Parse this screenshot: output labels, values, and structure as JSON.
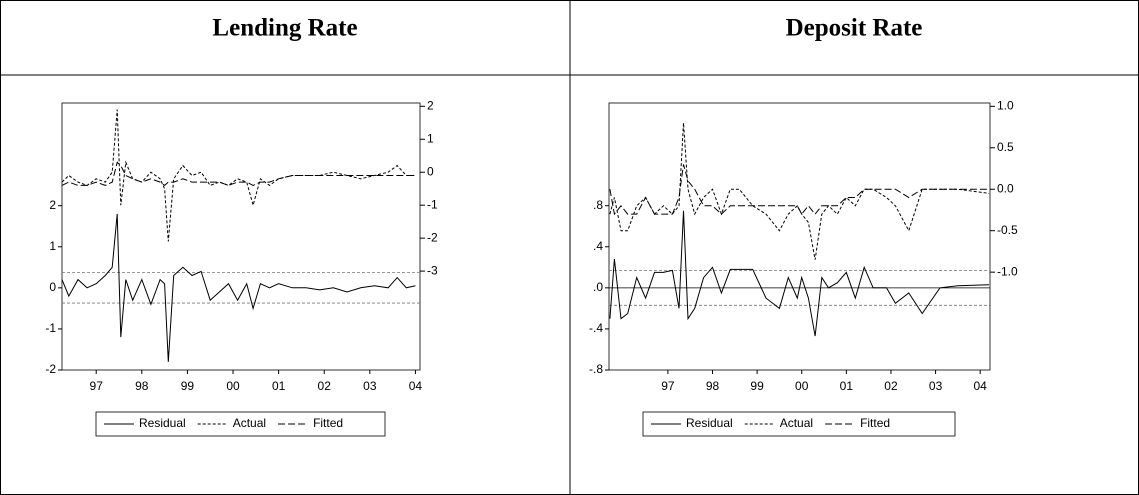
{
  "chart_data": [
    {
      "type": "line",
      "title": "Lending Rate",
      "x": [
        1996.75,
        1996.9,
        1997.1,
        1997.3,
        1997.5,
        1997.7,
        1997.85,
        1997.96,
        1998.04,
        1998.15,
        1998.3,
        1998.5,
        1998.7,
        1998.9,
        1999.0,
        1999.08,
        1999.2,
        1999.4,
        1999.6,
        1999.8,
        2000.0,
        2000.2,
        2000.4,
        2000.6,
        2000.8,
        2000.94,
        2001.1,
        2001.3,
        2001.5,
        2001.8,
        2002.1,
        2002.4,
        2002.7,
        2003.0,
        2003.3,
        2003.6,
        2003.9,
        2004.1,
        2004.3,
        2004.5
      ],
      "xlim": [
        1996.75,
        2004.6
      ],
      "xticks": [
        {
          "value": 1997.5,
          "label": "97"
        },
        {
          "value": 1998.5,
          "label": "98"
        },
        {
          "value": 1999.5,
          "label": "99"
        },
        {
          "value": 2000.5,
          "label": "00"
        },
        {
          "value": 2001.5,
          "label": "01"
        },
        {
          "value": 2002.5,
          "label": "02"
        },
        {
          "value": 2003.5,
          "label": "03"
        },
        {
          "value": 2004.5,
          "label": "04"
        }
      ],
      "ylim": [
        -2,
        4.5
      ],
      "yticks": [
        -2,
        -1,
        0,
        1,
        2
      ],
      "y2lim": [
        -6,
        2.1
      ],
      "y2ticks": [
        -3,
        -2,
        -1,
        0,
        1,
        2
      ],
      "band_lines": [
        0.37,
        -0.37
      ],
      "zero_line": false,
      "series": [
        {
          "name": "Residual",
          "color": "#000000",
          "dash": "solid",
          "axis": "y",
          "values": [
            0.2,
            -0.2,
            0.2,
            0.0,
            0.1,
            0.3,
            0.5,
            1.8,
            -1.2,
            0.2,
            -0.3,
            0.2,
            -0.4,
            0.2,
            0.1,
            -1.8,
            0.3,
            0.5,
            0.3,
            0.4,
            -0.3,
            -0.1,
            0.1,
            -0.3,
            0.1,
            -0.5,
            0.1,
            0.0,
            0.1,
            0.0,
            0.0,
            -0.05,
            0.0,
            -0.1,
            0.0,
            0.05,
            0.0,
            0.25,
            0.0,
            0.05
          ]
        },
        {
          "name": "Actual",
          "color": "#000000",
          "dash": "3,2",
          "axis": "y2",
          "values": [
            -0.3,
            -0.1,
            -0.3,
            -0.4,
            -0.2,
            -0.3,
            0.0,
            1.9,
            -1.0,
            0.3,
            -0.2,
            -0.3,
            0.0,
            -0.2,
            -0.5,
            -2.1,
            -0.2,
            0.2,
            -0.1,
            0.0,
            -0.4,
            -0.3,
            -0.4,
            -0.2,
            -0.3,
            -1.0,
            -0.2,
            -0.4,
            -0.2,
            -0.1,
            -0.1,
            -0.1,
            0.0,
            -0.1,
            -0.2,
            -0.1,
            0.0,
            0.2,
            -0.1,
            -0.1
          ]
        },
        {
          "name": "Fitted",
          "color": "#000000",
          "dash": "7,3",
          "axis": "y2",
          "values": [
            -0.4,
            -0.3,
            -0.4,
            -0.4,
            -0.3,
            -0.4,
            -0.3,
            0.3,
            0.2,
            -0.1,
            -0.2,
            -0.3,
            -0.2,
            -0.3,
            -0.4,
            -0.3,
            -0.3,
            -0.2,
            -0.3,
            -0.3,
            -0.3,
            -0.3,
            -0.4,
            -0.3,
            -0.3,
            -0.4,
            -0.3,
            -0.3,
            -0.2,
            -0.1,
            -0.1,
            -0.1,
            -0.1,
            -0.1,
            -0.1,
            -0.1,
            -0.1,
            -0.1,
            -0.1,
            -0.1
          ]
        }
      ]
    },
    {
      "type": "line",
      "title": "Deposit Rate",
      "x": [
        1996.2,
        1996.3,
        1996.45,
        1996.6,
        1996.8,
        1997.0,
        1997.2,
        1997.4,
        1997.6,
        1997.75,
        1997.85,
        1997.95,
        1998.1,
        1998.3,
        1998.5,
        1998.7,
        1998.9,
        1999.1,
        1999.4,
        1999.7,
        2000.0,
        2000.2,
        2000.4,
        2000.5,
        2000.65,
        2000.8,
        2000.95,
        2001.1,
        2001.3,
        2001.5,
        2001.7,
        2001.9,
        2002.1,
        2002.4,
        2002.6,
        2002.9,
        2003.2,
        2003.6,
        2004.0,
        2004.7
      ],
      "xlim": [
        1996.18,
        2004.72
      ],
      "xticks": [
        {
          "value": 1997.5,
          "label": "97"
        },
        {
          "value": 1998.5,
          "label": "98"
        },
        {
          "value": 1999.5,
          "label": "99"
        },
        {
          "value": 2000.5,
          "label": "00"
        },
        {
          "value": 2001.5,
          "label": "01"
        },
        {
          "value": 2002.5,
          "label": "02"
        },
        {
          "value": 2003.5,
          "label": "03"
        },
        {
          "value": 2004.5,
          "label": "04"
        }
      ],
      "ylim": [
        -0.8,
        1.8
      ],
      "yticks": [
        {
          "value": -0.8,
          "label": "-.8"
        },
        {
          "value": -0.4,
          "label": "-.4"
        },
        {
          "value": 0,
          "label": ".0"
        },
        {
          "value": 0.4,
          "label": ".4"
        },
        {
          "value": 0.8,
          "label": ".8"
        }
      ],
      "y2lim": [
        -2.18,
        1.04
      ],
      "y2ticks": [
        {
          "value": -1,
          "label": "-1.0"
        },
        -0.5,
        {
          "value": 0,
          "label": "0.0"
        },
        0.5,
        {
          "value": 1,
          "label": "1.0"
        }
      ],
      "band_lines": [
        0.17,
        -0.17
      ],
      "zero_line": true,
      "series": [
        {
          "name": "Residual",
          "color": "#000000",
          "dash": "solid",
          "axis": "y",
          "values": [
            -0.3,
            0.28,
            -0.3,
            -0.25,
            0.1,
            -0.1,
            0.15,
            0.15,
            0.17,
            -0.2,
            0.75,
            -0.3,
            -0.2,
            0.1,
            0.2,
            -0.05,
            0.18,
            0.18,
            0.18,
            -0.1,
            -0.2,
            0.1,
            -0.1,
            0.1,
            -0.1,
            -0.47,
            0.1,
            0.0,
            0.05,
            0.15,
            -0.1,
            0.2,
            0.0,
            0.0,
            -0.15,
            -0.05,
            -0.25,
            0.0,
            0.02,
            0.03
          ]
        },
        {
          "name": "Actual",
          "color": "#000000",
          "dash": "3,2",
          "axis": "y2",
          "values": [
            -0.3,
            -0.1,
            -0.5,
            -0.5,
            -0.2,
            -0.1,
            -0.3,
            -0.2,
            -0.3,
            -0.2,
            0.8,
            0.0,
            -0.3,
            -0.1,
            0.0,
            -0.3,
            0.0,
            0.0,
            -0.2,
            -0.3,
            -0.5,
            -0.3,
            -0.2,
            -0.3,
            -0.4,
            -0.85,
            -0.3,
            -0.2,
            -0.3,
            -0.1,
            -0.2,
            0.0,
            0.0,
            -0.1,
            -0.2,
            -0.5,
            0.0,
            0.0,
            0.0,
            -0.05
          ]
        },
        {
          "name": "Fitted",
          "color": "#000000",
          "dash": "7,3",
          "axis": "y2",
          "values": [
            0.0,
            -0.3,
            -0.2,
            -0.3,
            -0.3,
            -0.1,
            -0.3,
            -0.3,
            -0.3,
            -0.1,
            0.3,
            0.1,
            0.0,
            -0.2,
            -0.2,
            -0.3,
            -0.2,
            -0.2,
            -0.2,
            -0.2,
            -0.2,
            -0.2,
            -0.2,
            -0.3,
            -0.2,
            -0.3,
            -0.2,
            -0.2,
            -0.2,
            -0.1,
            -0.1,
            0.0,
            0.0,
            0.0,
            0.0,
            -0.1,
            0.0,
            0.0,
            0.0,
            0.0
          ]
        }
      ]
    }
  ]
}
